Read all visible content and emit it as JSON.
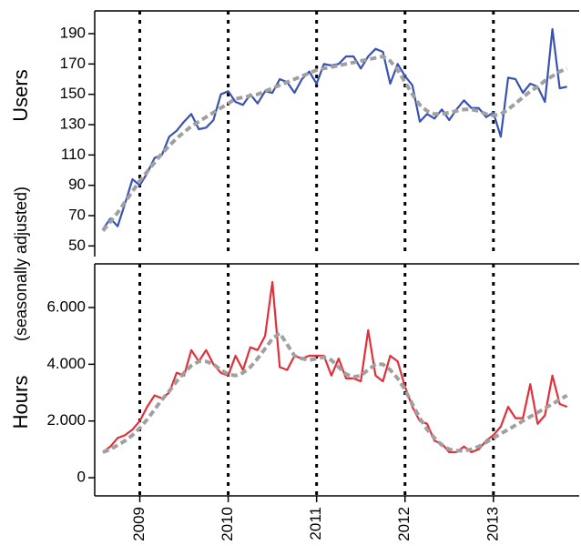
{
  "chart_data": [
    {
      "type": "line",
      "ylabel": "Users",
      "ylabel_color": "#2b3fa8",
      "x": [
        2008.583,
        2008.667,
        2008.75,
        2008.833,
        2008.917,
        2009,
        2009.083,
        2009.167,
        2009.25,
        2009.333,
        2009.417,
        2009.5,
        2009.583,
        2009.667,
        2009.75,
        2009.833,
        2009.917,
        2010,
        2010.083,
        2010.167,
        2010.25,
        2010.333,
        2010.417,
        2010.5,
        2010.583,
        2010.667,
        2010.75,
        2010.833,
        2010.917,
        2011,
        2011.083,
        2011.167,
        2011.25,
        2011.333,
        2011.417,
        2011.5,
        2011.583,
        2011.667,
        2011.75,
        2011.833,
        2011.917,
        2012,
        2012.083,
        2012.167,
        2012.25,
        2012.333,
        2012.417,
        2012.5,
        2012.583,
        2012.667,
        2012.75,
        2012.833,
        2012.917,
        2013,
        2013.083,
        2013.167,
        2013.25,
        2013.333,
        2013.417,
        2013.5,
        2013.583,
        2013.667,
        2013.75,
        2013.833
      ],
      "series": [
        {
          "color": "#3a52b0",
          "style": "solid",
          "values": [
            61,
            68,
            63,
            78,
            94,
            90,
            98,
            108,
            110,
            122,
            126,
            132,
            137,
            127,
            128,
            133,
            150,
            152,
            145,
            143,
            150,
            144,
            152,
            151,
            160,
            158,
            151,
            160,
            165,
            157,
            170,
            169,
            170,
            175,
            175,
            167,
            175,
            180,
            178,
            157,
            170,
            162,
            156,
            132,
            137,
            134,
            140,
            133,
            140,
            146,
            141,
            141,
            135,
            138,
            122,
            161,
            160,
            151,
            157,
            155,
            145,
            193,
            154,
            155
          ]
        },
        {
          "color": "#a0a0a0",
          "style": "dashed",
          "values": [
            60,
            66,
            72,
            79,
            86,
            93,
            99,
            105,
            111,
            116,
            121,
            125,
            129,
            132,
            135,
            138,
            141,
            144,
            147,
            148,
            149,
            150,
            152,
            154,
            156,
            158,
            160,
            162,
            164,
            166,
            167,
            168,
            169,
            170,
            171,
            172,
            173,
            174,
            175,
            172,
            166,
            158,
            150,
            143,
            139,
            137,
            137,
            138,
            139,
            140,
            140,
            139,
            137,
            136,
            137,
            140,
            144,
            148,
            152,
            155,
            159,
            162,
            165,
            167
          ]
        }
      ],
      "xlim": [
        2008.49,
        2013.97
      ],
      "xticks": [
        2009,
        2010,
        2011,
        2012,
        2013
      ],
      "ylim": [
        43,
        205
      ],
      "yticks": [
        50,
        70,
        90,
        110,
        130,
        150,
        170,
        190
      ]
    },
    {
      "type": "line",
      "ylabel": "Hours",
      "ylabel_color": "#e0202a",
      "x": [
        2008.583,
        2008.667,
        2008.75,
        2008.833,
        2008.917,
        2009,
        2009.083,
        2009.167,
        2009.25,
        2009.333,
        2009.417,
        2009.5,
        2009.583,
        2009.667,
        2009.75,
        2009.833,
        2009.917,
        2010,
        2010.083,
        2010.167,
        2010.25,
        2010.333,
        2010.417,
        2010.5,
        2010.583,
        2010.667,
        2010.75,
        2010.833,
        2010.917,
        2011,
        2011.083,
        2011.167,
        2011.25,
        2011.333,
        2011.417,
        2011.5,
        2011.583,
        2011.667,
        2011.75,
        2011.833,
        2011.917,
        2012,
        2012.083,
        2012.167,
        2012.25,
        2012.333,
        2012.417,
        2012.5,
        2012.583,
        2012.667,
        2012.75,
        2012.833,
        2012.917,
        2013,
        2013.083,
        2013.167,
        2013.25,
        2013.333,
        2013.417,
        2013.5,
        2013.583,
        2013.667,
        2013.75,
        2013.833
      ],
      "series": [
        {
          "color": "#e0303a",
          "style": "solid",
          "values": [
            900,
            1100,
            1400,
            1500,
            1700,
            2000,
            2500,
            2900,
            2800,
            3000,
            3700,
            3600,
            4500,
            4100,
            4500,
            4000,
            3700,
            3600,
            4300,
            3800,
            4600,
            4500,
            5000,
            6900,
            3900,
            3800,
            4300,
            4200,
            4300,
            4300,
            4300,
            3600,
            4200,
            3500,
            3500,
            3400,
            5200,
            3600,
            3400,
            4300,
            4100,
            3200,
            2500,
            2000,
            1900,
            1300,
            1200,
            900,
            900,
            1100,
            900,
            1000,
            1300,
            1500,
            1800,
            2500,
            2100,
            2100,
            3300,
            1900,
            2200,
            3600,
            2600,
            2500
          ]
        },
        {
          "color": "#a0a0a0",
          "style": "dashed",
          "values": [
            900,
            1000,
            1150,
            1300,
            1500,
            1750,
            2050,
            2400,
            2750,
            3050,
            3400,
            3700,
            3950,
            4100,
            4100,
            4000,
            3800,
            3650,
            3600,
            3700,
            3900,
            4200,
            4550,
            4900,
            5100,
            4700,
            4300,
            4200,
            4150,
            4200,
            4250,
            4150,
            3900,
            3650,
            3550,
            3600,
            3800,
            4000,
            4000,
            3800,
            3500,
            3100,
            2600,
            2100,
            1700,
            1400,
            1150,
            1000,
            950,
            950,
            1000,
            1100,
            1250,
            1400,
            1550,
            1700,
            1850,
            2000,
            2150,
            2300,
            2450,
            2600,
            2750,
            2900
          ]
        }
      ],
      "xlim": [
        2008.49,
        2013.97
      ],
      "xticks": [
        2009,
        2010,
        2011,
        2012,
        2013
      ],
      "ylim": [
        -640,
        7540
      ],
      "yticks": [
        0,
        {
          "value": 2000,
          "label": "2.000"
        },
        {
          "value": 4000,
          "label": "4.000"
        },
        {
          "value": 6000,
          "label": "6.000"
        }
      ]
    }
  ],
  "shared_ylabel": "(seasonally adjusted)"
}
